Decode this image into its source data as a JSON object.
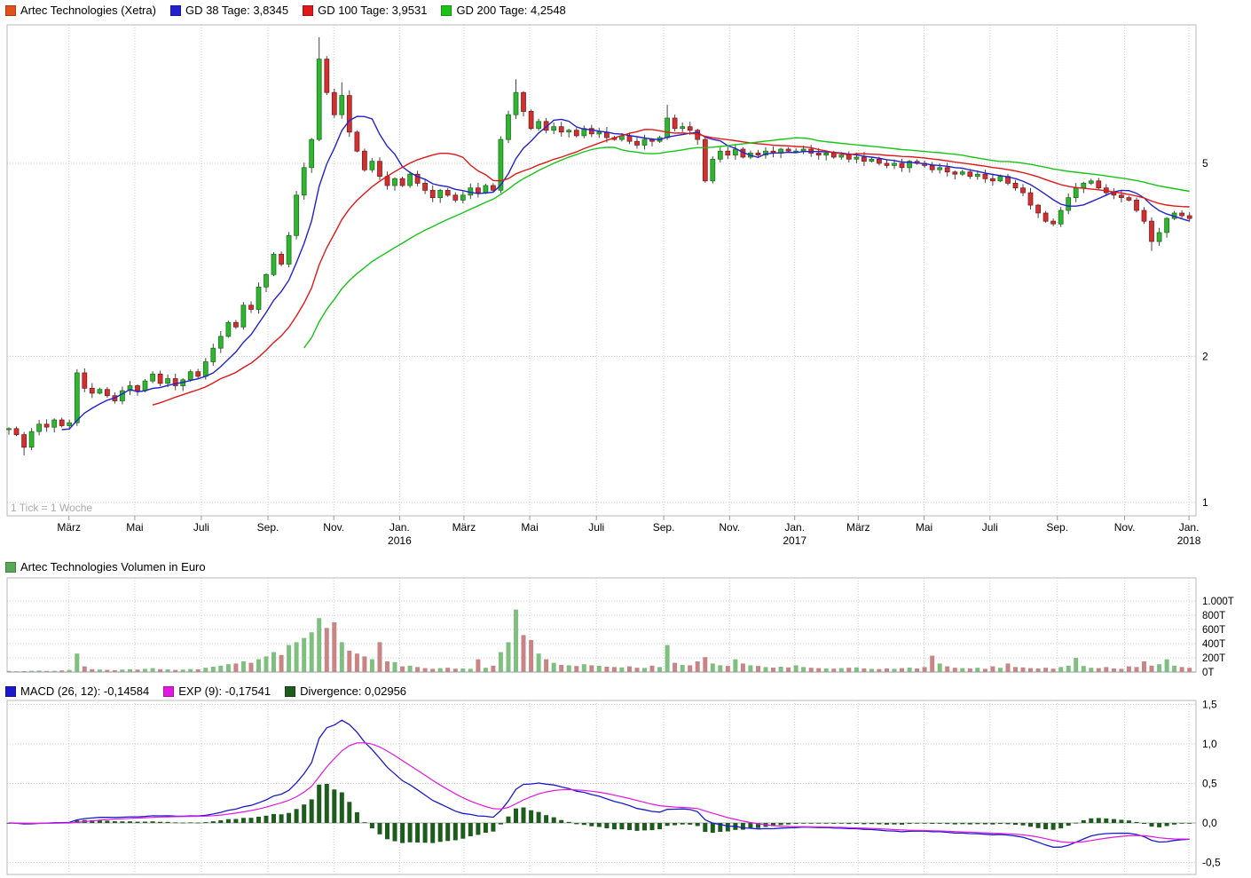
{
  "legend_price": {
    "instrument": {
      "label": "Artec Technologies (Xetra)",
      "color": "#e2511b"
    },
    "items": [
      {
        "label": "GD 38 Tage: 3,8345",
        "color": "#2222cc"
      },
      {
        "label": "GD 100 Tage: 3,9531",
        "color": "#e01818"
      },
      {
        "label": "GD 200 Tage: 4,2548",
        "color": "#18c418"
      }
    ]
  },
  "legend_volume": {
    "label": "Artec Technologies Volumen in Euro",
    "color": "#57a957"
  },
  "legend_macd": {
    "items": [
      {
        "label": "MACD (26, 12): -0,14584",
        "color": "#1a1acc"
      },
      {
        "label": "EXP (9): -0,17541",
        "color": "#e018e0"
      },
      {
        "label": "Divergence: 0,02956",
        "color": "#1d5c1d"
      }
    ]
  },
  "chart_data": [
    {
      "type": "candlestick",
      "title": "Artec Technologies (Xetra)",
      "timeframe": "weekly",
      "tick_note": "1 Tick = 1 Woche",
      "y_scale": "log",
      "y_ticks": [
        5,
        2,
        1
      ],
      "x_ticks": [
        {
          "label": "März",
          "week": 8.4
        },
        {
          "label": "Mai",
          "week": 17.1
        },
        {
          "label": "Juli",
          "week": 25.9
        },
        {
          "label": "Sep.",
          "week": 34.7
        },
        {
          "label": "Nov.",
          "week": 43.4
        },
        {
          "label": "Jan.",
          "week": 52.1,
          "year": "2016"
        },
        {
          "label": "März",
          "week": 60.6
        },
        {
          "label": "Mai",
          "week": 69.3
        },
        {
          "label": "Juli",
          "week": 78.1
        },
        {
          "label": "Sep.",
          "week": 87.0
        },
        {
          "label": "Nov.",
          "week": 95.7
        },
        {
          "label": "Jan.",
          "week": 104.3,
          "year": "2017"
        },
        {
          "label": "März",
          "week": 112.7
        },
        {
          "label": "Mai",
          "week": 121.4
        },
        {
          "label": "Juli",
          "week": 130.1
        },
        {
          "label": "Sep.",
          "week": 139.0
        },
        {
          "label": "Nov.",
          "week": 147.9
        },
        {
          "label": "Jan.",
          "week": 156.4,
          "year": "2018"
        }
      ],
      "close": [
        1.42,
        1.38,
        1.3,
        1.4,
        1.45,
        1.43,
        1.48,
        1.44,
        1.46,
        1.85,
        1.72,
        1.68,
        1.71,
        1.66,
        1.62,
        1.7,
        1.74,
        1.7,
        1.78,
        1.84,
        1.76,
        1.8,
        1.74,
        1.79,
        1.86,
        1.82,
        1.95,
        2.08,
        2.2,
        2.35,
        2.3,
        2.55,
        2.5,
        2.78,
        2.95,
        3.25,
        3.1,
        3.55,
        4.3,
        4.9,
        5.6,
        8.2,
        7.0,
        6.3,
        6.9,
        5.8,
        5.3,
        4.85,
        5.05,
        4.7,
        4.5,
        4.65,
        4.5,
        4.75,
        4.55,
        4.4,
        4.25,
        4.4,
        4.3,
        4.2,
        4.3,
        4.45,
        4.35,
        4.5,
        4.4,
        5.6,
        6.3,
        7.0,
        6.4,
        5.9,
        6.1,
        5.85,
        5.95,
        5.8,
        5.85,
        5.7,
        5.9,
        5.75,
        5.8,
        5.65,
        5.6,
        5.7,
        5.55,
        5.45,
        5.6,
        5.55,
        5.65,
        6.2,
        5.9,
        5.95,
        5.85,
        5.6,
        4.6,
        5.1,
        5.3,
        5.2,
        5.35,
        5.15,
        5.25,
        5.2,
        5.3,
        5.25,
        5.35,
        5.3,
        5.3,
        5.35,
        5.25,
        5.2,
        5.25,
        5.15,
        5.2,
        5.1,
        5.15,
        5.05,
        5.1,
        5.0,
        4.95,
        5.0,
        4.9,
        5.05,
        5.0,
        4.95,
        4.85,
        4.9,
        4.8,
        4.75,
        4.8,
        4.7,
        4.75,
        4.65,
        4.6,
        4.7,
        4.55,
        4.45,
        4.35,
        4.1,
        3.95,
        3.8,
        3.75,
        4.0,
        4.25,
        4.45,
        4.55,
        4.6,
        4.45,
        4.35,
        4.3,
        4.25,
        4.2,
        4.0,
        3.8,
        3.45,
        3.6,
        3.85,
        3.95,
        3.9,
        3.85
      ],
      "high_overrides": {
        "41": 9.1,
        "44": 7.35,
        "67": 7.45,
        "87": 6.6
      },
      "low_overrides": {
        "2": 1.25,
        "151": 3.3
      },
      "moving_averages": [
        {
          "name": "GD 38 Tage",
          "last_value": "3,8345",
          "window_weeks": 8,
          "color": "#2222cc"
        },
        {
          "name": "GD 100 Tage",
          "last_value": "3,9531",
          "window_weeks": 20,
          "color": "#e01818"
        },
        {
          "name": "GD 200 Tage",
          "last_value": "4,2548",
          "window_weeks": 40,
          "color": "#18c418"
        }
      ],
      "colors": {
        "up": "#2fb52f",
        "up_border": "#1b6e1b",
        "down": "#d03030",
        "down_border": "#7c1a1a",
        "wick": "#444444"
      }
    },
    {
      "type": "bar",
      "title": "Artec Technologies Volumen in Euro",
      "unit": "T",
      "y_ticks": [
        {
          "label": "1.000T",
          "value": 1000
        },
        {
          "label": "800T",
          "value": 800
        },
        {
          "label": "600T",
          "value": 600
        },
        {
          "label": "400T",
          "value": 400
        },
        {
          "label": "200T",
          "value": 200
        },
        {
          "label": "0T",
          "value": 0
        }
      ],
      "values": [
        15,
        10,
        12,
        18,
        20,
        15,
        18,
        22,
        30,
        260,
        80,
        40,
        35,
        30,
        25,
        35,
        40,
        35,
        45,
        55,
        40,
        38,
        30,
        35,
        42,
        38,
        60,
        75,
        90,
        110,
        120,
        150,
        130,
        180,
        220,
        280,
        240,
        380,
        420,
        480,
        560,
        760,
        620,
        700,
        420,
        300,
        260,
        220,
        180,
        420,
        150,
        140,
        80,
        90,
        70,
        55,
        45,
        55,
        60,
        48,
        50,
        45,
        180,
        60,
        90,
        280,
        420,
        880,
        520,
        450,
        260,
        180,
        130,
        100,
        95,
        85,
        110,
        95,
        88,
        75,
        70,
        65,
        80,
        60,
        58,
        90,
        70,
        380,
        130,
        100,
        95,
        150,
        210,
        120,
        95,
        85,
        180,
        120,
        95,
        85,
        70,
        62,
        75,
        65,
        95,
        70,
        60,
        55,
        50,
        48,
        55,
        60,
        65,
        50,
        45,
        42,
        50,
        45,
        55,
        62,
        50,
        70,
        230,
        120,
        80,
        60,
        55,
        50,
        60,
        45,
        80,
        60,
        120,
        70,
        65,
        55,
        50,
        60,
        48,
        70,
        90,
        200,
        85,
        60,
        55,
        70,
        50,
        45,
        80,
        70,
        150,
        90,
        110,
        180,
        90,
        70,
        60
      ],
      "colors": {
        "up": "#7fbf7f",
        "down": "#c98585"
      }
    },
    {
      "type": "line",
      "series_labels": {
        "macd": "MACD (26, 12): -0,14584",
        "signal": "EXP (9): -0,17541",
        "divergence": "Divergence: 0,02956"
      },
      "params": {
        "slow": 26,
        "fast": 12,
        "signal": 9
      },
      "derived_from": "weekly close series of price panel",
      "y_ticks": [
        {
          "label": "1,5",
          "value": 1.5
        },
        {
          "label": "1,0",
          "value": 1.0
        },
        {
          "label": "0,5",
          "value": 0.5
        },
        {
          "label": "0,0",
          "value": 0.0
        },
        {
          "label": "-0,5",
          "value": -0.5
        }
      ],
      "colors": {
        "macd": "#1a1acc",
        "signal": "#e018e0",
        "divergence": "#1d5c1d"
      }
    }
  ]
}
